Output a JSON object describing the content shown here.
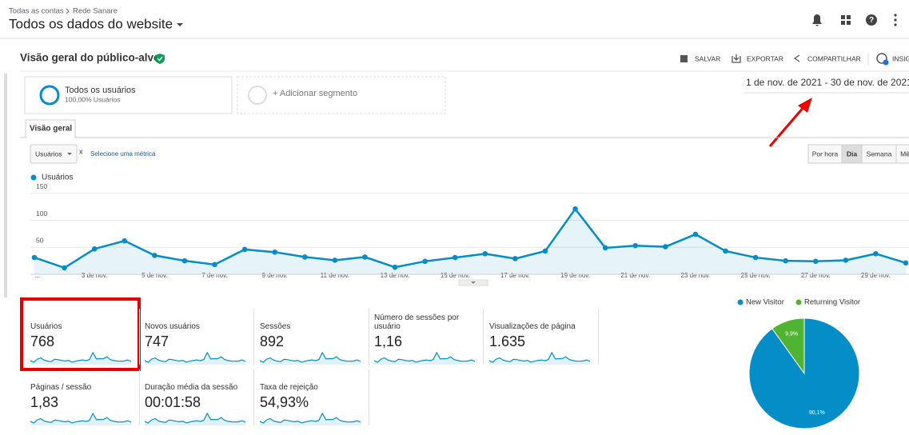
{
  "header": {
    "breadcrumb": [
      "Todas as contas",
      "Rede Sanare"
    ],
    "title": "Todos os dados do website"
  },
  "report": {
    "title": "Visão geral do público-alvo",
    "actions": [
      "SALVAR",
      "EXPORTAR",
      "COMPARTILHAR",
      "INSIG"
    ],
    "segment": {
      "name": "Todos os usuários",
      "detail": "100,00% Usuários"
    },
    "add_segment": "+ Adicionar segmento",
    "date_range": "1 de nov. de 2021 - 30 de nov. de 2021",
    "tab": "Visão geral",
    "metric_select": "Usuários",
    "metric_remove": "x",
    "metric_add": "Selecione uma métrica",
    "granularity": [
      "Por hora",
      "Dia",
      "Semana",
      "Mê"
    ]
  },
  "scorecards": [
    {
      "label": "Usuários",
      "value": "768"
    },
    {
      "label": "Novos usuários",
      "value": "747"
    },
    {
      "label": "Sessões",
      "value": "892"
    },
    {
      "label": "Número de sessões por usuário",
      "value": "1,16"
    },
    {
      "label": "Visualizações de página",
      "value": "1.635"
    },
    {
      "label": "Páginas / sessão",
      "value": "1,83"
    },
    {
      "label": "Duração média da sessão",
      "value": "00:01:58"
    },
    {
      "label": "Taxa de rejeição",
      "value": "54,93%"
    }
  ],
  "chart_data": [
    {
      "type": "line",
      "categories": [
        "...",
        null,
        "3 de nov.",
        null,
        "5 de nov.",
        null,
        "7 de nov.",
        null,
        "9 de nov.",
        null,
        "11 de nov.",
        null,
        "13 de nov.",
        null,
        "15 de nov.",
        null,
        "17 de nov.",
        null,
        "19 de nov.",
        null,
        "21 de nov.",
        null,
        "23 de nov.",
        null,
        "25 de nov.",
        null,
        "27 de nov.",
        null,
        "29 de nov.",
        null
      ],
      "series": [
        {
          "name": "Usuários",
          "color": "#058dc7",
          "values": [
            31,
            12,
            47,
            62,
            35,
            25,
            18,
            46,
            41,
            32,
            26,
            32,
            13,
            24,
            31,
            38,
            29,
            43,
            121,
            49,
            53,
            51,
            74,
            43,
            31,
            25,
            24,
            26,
            38,
            21
          ]
        }
      ],
      "ylim": [
        0,
        160
      ],
      "yticks": [
        50,
        100,
        150
      ],
      "grid": true
    },
    {
      "type": "pie",
      "categories": [
        "New Visitor",
        "Returning Visitor"
      ],
      "values": [
        90.1,
        9.9
      ],
      "value_labels": [
        "90,1%",
        "9,9%"
      ],
      "colors": [
        "#058dc7",
        "#50b432"
      ]
    }
  ]
}
